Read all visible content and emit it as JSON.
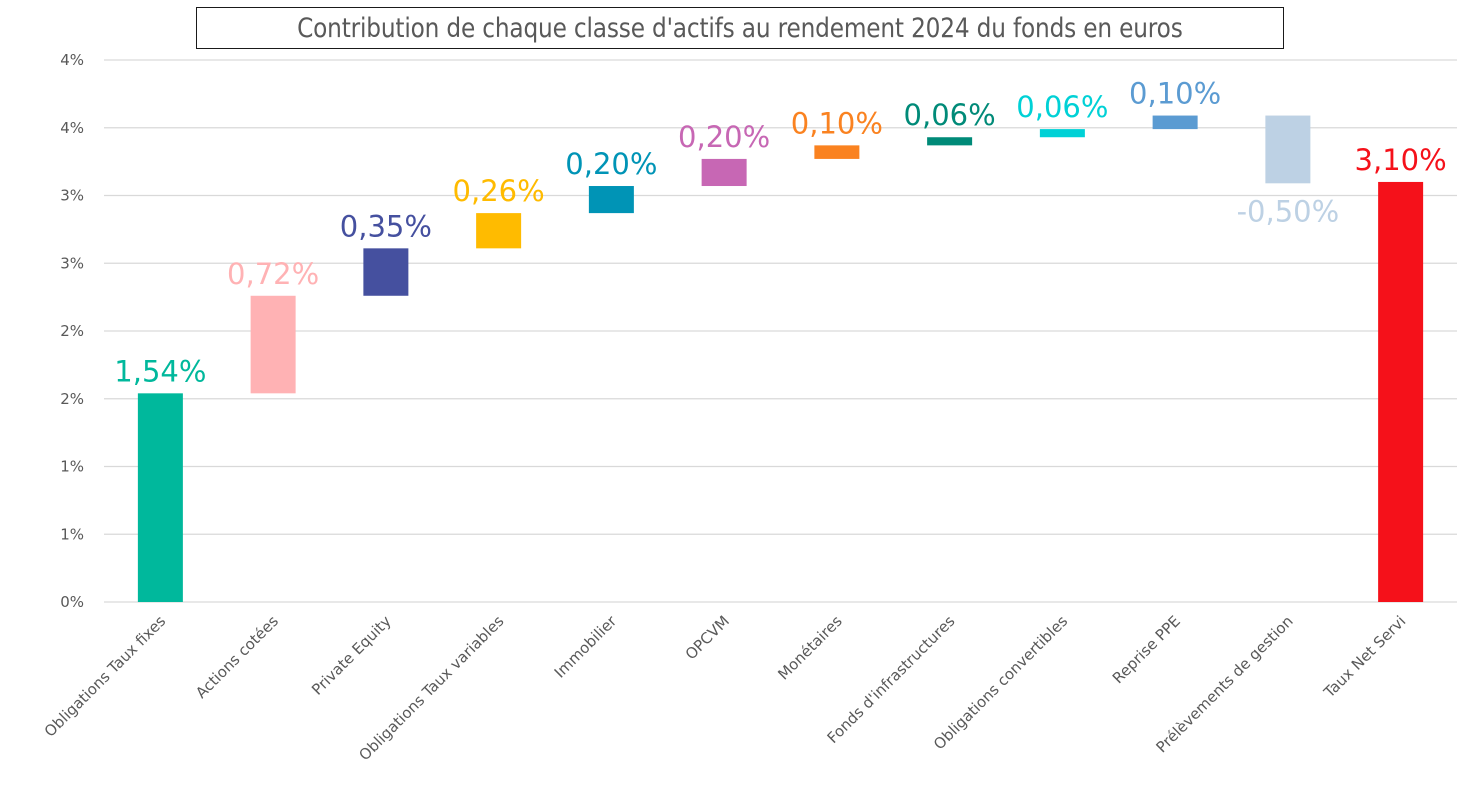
{
  "chart_data": {
    "type": "bar",
    "subtype": "waterfall",
    "title": "Contribution de chaque classe d'actifs au rendement 2024 du fonds en euros",
    "xlabel": "",
    "ylabel": "",
    "ylim": [
      0,
      4
    ],
    "grid": true,
    "legend": "none",
    "y_ticks": [
      {
        "value": 0,
        "label": "0%"
      },
      {
        "value": 0.5,
        "label": "1%"
      },
      {
        "value": 1.0,
        "label": "1%"
      },
      {
        "value": 1.5,
        "label": "2%"
      },
      {
        "value": 2.0,
        "label": "2%"
      },
      {
        "value": 2.5,
        "label": "3%"
      },
      {
        "value": 3.0,
        "label": "3%"
      },
      {
        "value": 3.5,
        "label": "4%"
      },
      {
        "value": 4.0,
        "label": "4%"
      }
    ],
    "categories": [
      "Obligations Taux fixes",
      "Actions cotées",
      "Private Equity",
      "Obligations Taux variables",
      "Immobilier",
      "OPCVM",
      "Monétaires",
      "Fonds d'infrastructures",
      "Obligations convertibles",
      "Reprise PPE",
      "Prélèvements de gestion",
      "Taux Net Servi"
    ],
    "values": [
      1.54,
      0.72,
      0.35,
      0.26,
      0.2,
      0.2,
      0.1,
      0.06,
      0.06,
      0.1,
      -0.5,
      3.1
    ],
    "bar_kind": [
      "increase",
      "increase",
      "increase",
      "increase",
      "increase",
      "increase",
      "increase",
      "increase",
      "increase",
      "increase",
      "decrease",
      "total"
    ],
    "data_labels": [
      "1,54%",
      "0,72%",
      "0,35%",
      "0,26%",
      "0,20%",
      "0,20%",
      "0,10%",
      "0,06%",
      "0,06%",
      "0,10%",
      "-0,50%",
      "3,10%"
    ],
    "colors": [
      "#00b89c",
      "#ffb2b4",
      "#45509f",
      "#ffbb00",
      "#0094b6",
      "#c767b4",
      "#fa8220",
      "#008a78",
      "#00d1d6",
      "#5b9bd2",
      "#bdd1e4",
      "#f5111a"
    ]
  },
  "style": {
    "grid_color": "#d9d9d9",
    "axis_text_color": "#595959"
  }
}
